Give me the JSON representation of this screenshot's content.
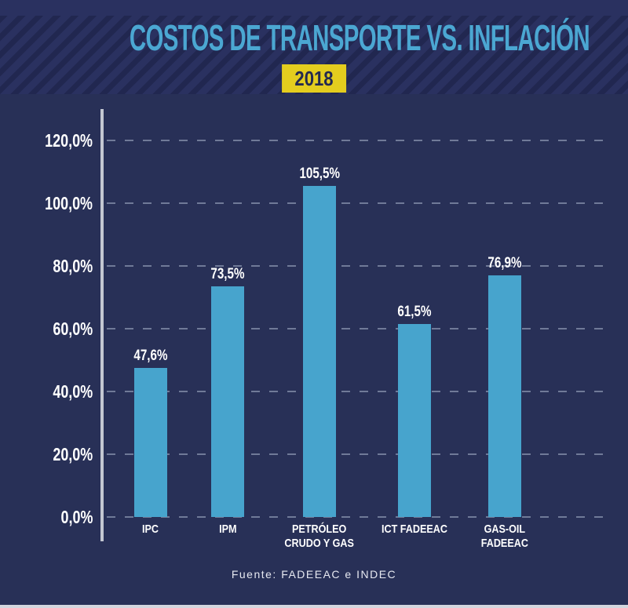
{
  "header": {
    "title": "COSTOS DE TRANSPORTE VS. INFLACIÓN",
    "year_badge": "2018"
  },
  "footer": {
    "source": "Fuente: FADEEAC e INDEC"
  },
  "chart_data": {
    "type": "bar",
    "title": "COSTOS DE TRANSPORTE VS. INFLACIÓN",
    "subtitle": "2018",
    "categories": [
      "IPC",
      "IPM",
      "PETRÓLEO CRUDO Y GAS",
      "ICT FADEEAC",
      "GAS-OIL FADEEAC"
    ],
    "category_display": [
      "IPC",
      "IPM",
      "PETRÓLEO\nCRUDO Y GAS",
      "ICT FADEEAC",
      "GAS-OIL\nFADEEAC"
    ],
    "values": [
      47.6,
      73.5,
      105.5,
      61.5,
      76.9
    ],
    "value_labels": [
      "47,6%",
      "73,5%",
      "105,5%",
      "61,5%",
      "76,9%"
    ],
    "y_ticks": [
      "0,0%",
      "20,0%",
      "40,0%",
      "60,0%",
      "80,0%",
      "100,0%",
      "120,0%"
    ],
    "y_tick_values": [
      0,
      20,
      40,
      60,
      80,
      100,
      120
    ],
    "ylim": [
      0,
      130
    ],
    "xlabel": "",
    "ylabel": "",
    "grid": "dashed horizontal, includes zero baseline",
    "legend": "none",
    "source": "Fuente: FADEEAC e INDEC",
    "colors": {
      "bar": "#47a4cd",
      "background": "#283057",
      "header_base": "#2a3160",
      "header_stripe": "#212750",
      "title": "#4ba7d2",
      "badge_bg": "#e4cd1e",
      "badge_text": "#232950",
      "tick_text": "#ffffff",
      "gridline": "#7d87a3",
      "axis_line": "#c3c7d1"
    }
  }
}
